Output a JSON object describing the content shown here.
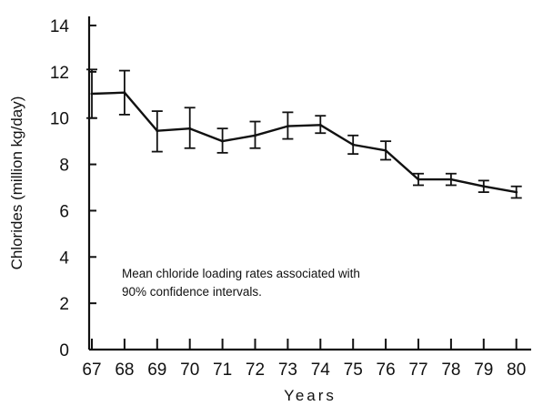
{
  "chart_data": {
    "type": "line",
    "title": "",
    "xlabel": "Years",
    "ylabel": "Chlorides (million kg/day)",
    "x": [
      "67",
      "68",
      "69",
      "70",
      "71",
      "72",
      "73",
      "74",
      "75",
      "76",
      "77",
      "78",
      "79",
      "80"
    ],
    "series": [
      {
        "values": [
          11.05,
          11.1,
          9.45,
          9.55,
          9.0,
          9.25,
          9.65,
          9.7,
          8.85,
          8.6,
          7.35,
          7.35,
          7.05,
          6.8
        ],
        "lower": [
          10.0,
          10.15,
          8.55,
          8.7,
          8.5,
          8.7,
          9.1,
          9.35,
          8.45,
          8.2,
          7.1,
          7.1,
          6.8,
          6.55
        ],
        "upper": [
          12.1,
          12.05,
          10.3,
          10.45,
          9.55,
          9.85,
          10.25,
          10.1,
          9.25,
          9.0,
          7.6,
          7.6,
          7.3,
          7.05
        ]
      }
    ],
    "ylim": [
      0,
      14
    ],
    "yticks": [
      "0",
      "2",
      "4",
      "6",
      "8",
      "10",
      "12",
      "14"
    ],
    "annotation": [
      "Mean chloride loading rates associated with",
      "90% confidence intervals."
    ],
    "grid": false
  }
}
